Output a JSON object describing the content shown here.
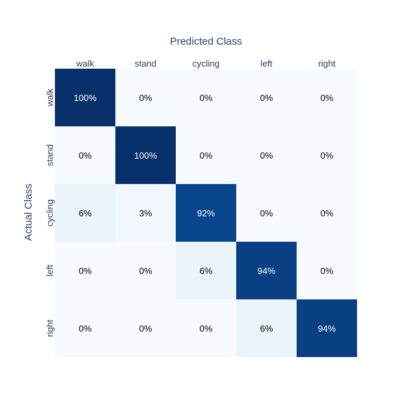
{
  "chart_data": {
    "type": "heatmap",
    "title": "Predicted Class",
    "xlabel": "Predicted Class",
    "ylabel": "Actual Class",
    "x_categories": [
      "walk",
      "stand",
      "cycling",
      "left",
      "right"
    ],
    "y_categories": [
      "walk",
      "stand",
      "cycling",
      "left",
      "right"
    ],
    "values": [
      [
        100,
        0,
        0,
        0,
        0
      ],
      [
        0,
        100,
        0,
        0,
        0
      ],
      [
        6,
        3,
        92,
        0,
        0
      ],
      [
        0,
        0,
        6,
        94,
        0
      ],
      [
        0,
        0,
        0,
        6,
        94
      ]
    ],
    "value_format": "percent",
    "colorscale": "Blues",
    "xaxis_side": "top",
    "zrange": [
      0,
      100
    ]
  }
}
